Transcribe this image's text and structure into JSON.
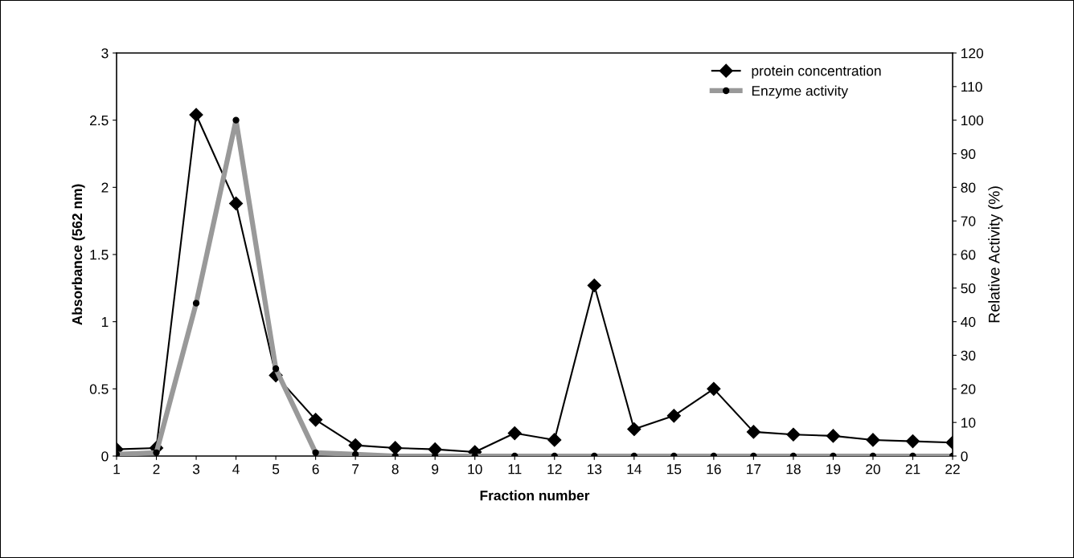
{
  "chart_data": {
    "type": "line",
    "xlabel": "Fraction number",
    "ylabel": "Absorbance (562 nm)",
    "y2label": "Relative Activity (%)",
    "categories": [
      "1",
      "2",
      "3",
      "4",
      "5",
      "6",
      "7",
      "8",
      "9",
      "10",
      "11",
      "12",
      "13",
      "14",
      "15",
      "16",
      "17",
      "18",
      "19",
      "20",
      "21",
      "22"
    ],
    "series": [
      {
        "name": "protein concentration",
        "color": "#000000",
        "marker": "diamond",
        "values": [
          0.05,
          0.06,
          2.54,
          1.88,
          0.6,
          0.27,
          0.08,
          0.06,
          0.05,
          0.03,
          0.17,
          0.12,
          1.27,
          0.2,
          0.3,
          0.5,
          0.18,
          0.16,
          0.15,
          0.12,
          0.11,
          0.1
        ]
      },
      {
        "name": "Enzyme activity",
        "color": "#999999",
        "marker": "circle",
        "axis": "y2",
        "values": [
          0.5,
          1,
          45.5,
          100,
          26,
          1,
          0.5,
          0,
          0,
          0,
          0,
          0,
          0,
          0,
          0,
          0,
          0,
          0,
          0,
          0,
          0,
          0
        ]
      }
    ],
    "ylim": [
      0,
      3
    ],
    "yticks": [
      0,
      0.5,
      1,
      1.5,
      2,
      2.5,
      3
    ],
    "y2lim": [
      0,
      120
    ],
    "y2ticks": [
      0,
      10,
      20,
      30,
      40,
      50,
      60,
      70,
      80,
      90,
      100,
      110,
      120
    ],
    "legend": "top right",
    "grid": false
  }
}
